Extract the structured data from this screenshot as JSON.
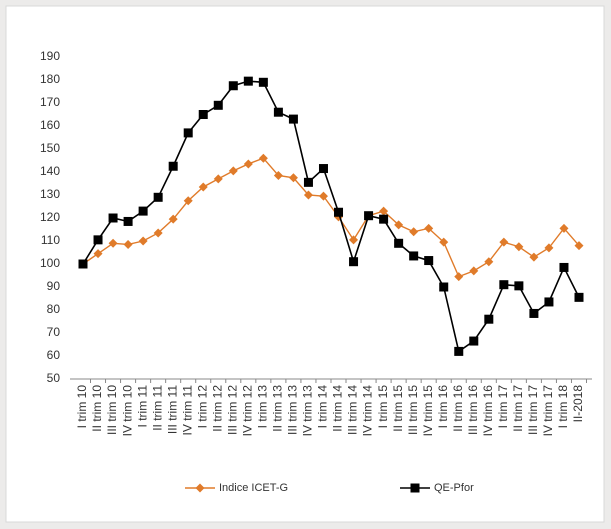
{
  "chart_data": {
    "type": "line",
    "categories": [
      "I trim 10",
      "II trim 10",
      "III trim 10",
      "IV trim 10",
      "I trim 11",
      "II trim 11",
      "III trim 11",
      "IV trim 11",
      "I trim 12",
      "II trim 12",
      "III trim 12",
      "IV trim 12",
      "I trim 13",
      "II trim 13",
      "III trim 13",
      "IV trim 13",
      "I trim 14",
      "II trim 14",
      "III trim 14",
      "IV trim 14",
      "I trim 15",
      "II trim 15",
      "III trim 15",
      "IV trim 15",
      "I trim 16",
      "II trim 16",
      "III trim 16",
      "IV trim 16",
      "I trim 17",
      "II trim 17",
      "III trim 17",
      "IV trim 17",
      "I trim 18",
      "II-2018"
    ],
    "series": [
      {
        "name": "Indice ICET-G",
        "color": "#e07b2a",
        "marker": "diamond",
        "values": [
          100,
          104.5,
          109,
          108.5,
          110,
          113.5,
          119.5,
          127.5,
          133.5,
          137,
          140.5,
          143.5,
          146,
          138.5,
          137.5,
          130,
          129.5,
          120.5,
          110.5,
          121,
          123,
          117,
          114,
          115.5,
          109.5,
          94.5,
          97,
          101,
          109.5,
          107.5,
          103,
          107,
          115.5,
          108
        ]
      },
      {
        "name": "QE-Pfor",
        "color": "#000000",
        "marker": "square",
        "values": [
          100,
          110.5,
          120,
          118.5,
          123,
          129,
          142.5,
          157,
          165,
          169,
          177.5,
          179.5,
          179,
          166,
          163,
          135.5,
          141.5,
          122.5,
          101,
          121,
          119.5,
          109,
          103.5,
          101.5,
          90,
          62,
          66.5,
          76,
          91,
          90.5,
          78.5,
          83.5,
          98.5,
          85.5
        ]
      }
    ],
    "ylim": [
      50,
      190
    ],
    "yticks": [
      50,
      60,
      70,
      80,
      90,
      100,
      110,
      120,
      130,
      140,
      150,
      160,
      170,
      180,
      190
    ],
    "grid": false,
    "legend": "bottom"
  }
}
